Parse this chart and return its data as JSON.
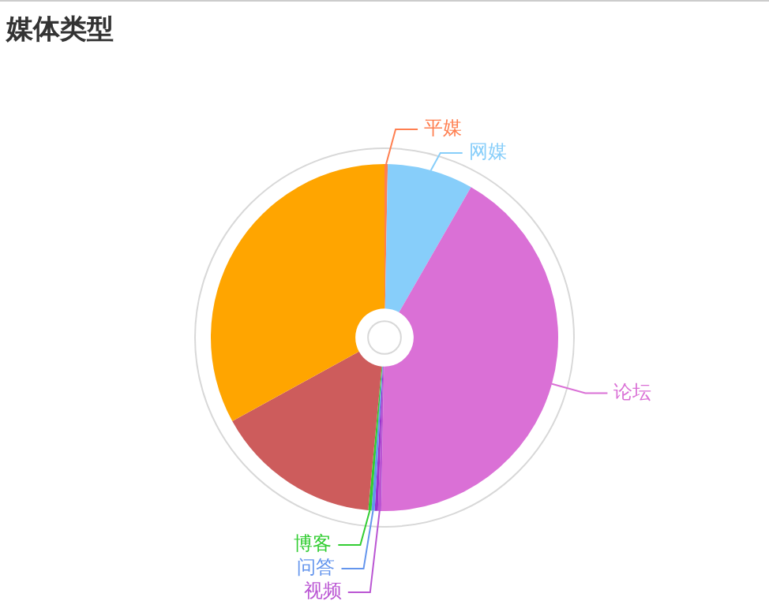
{
  "chart_data": {
    "type": "donut",
    "title": "媒体类型",
    "legend": false,
    "categories": [
      "平媒",
      "网媒",
      "论坛",
      "视频",
      null,
      "问答",
      "博客",
      null,
      null
    ],
    "values": [
      0.3,
      8,
      42,
      0.3,
      0.3,
      0.3,
      0.3,
      15.5,
      33
    ],
    "colors": [
      "#ff7f50",
      "#87cefa",
      "#da70d6",
      "#ba55d3",
      "#9932cc",
      "#6495ed",
      "#32cd32",
      "#cd5c5c",
      "#ffa500"
    ]
  }
}
